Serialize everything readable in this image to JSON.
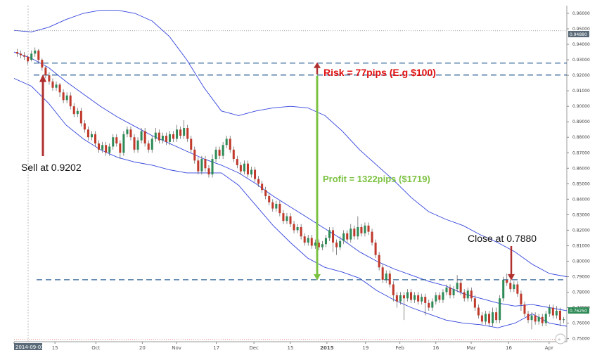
{
  "chart_data": {
    "type": "candlestick",
    "ylim": [
      0.748,
      0.965
    ],
    "y_ticks": [
      "0.96000",
      "0.95000",
      "0.94000",
      "0.93000",
      "0.92000",
      "0.91000",
      "0.90000",
      "0.89000",
      "0.88000",
      "0.87000",
      "0.86000",
      "0.85000",
      "0.84000",
      "0.83000",
      "0.82000",
      "0.81000",
      "0.80000",
      "0.79000",
      "0.78000",
      "0.77000",
      "0.76000",
      "0.75000"
    ],
    "y_tick_values": [
      0.96,
      0.95,
      0.94,
      0.93,
      0.92,
      0.91,
      0.9,
      0.89,
      0.88,
      0.87,
      0.86,
      0.85,
      0.84,
      0.83,
      0.82,
      0.81,
      0.8,
      0.79,
      0.78,
      0.77,
      0.76,
      0.75
    ],
    "x_ticks": [
      {
        "label": "2014-09-03",
        "pos": 0.0
      },
      {
        "label": "15",
        "pos": 0.074
      },
      {
        "label": "Oct",
        "pos": 0.148
      },
      {
        "label": "20",
        "pos": 0.232
      },
      {
        "label": "Nov",
        "pos": 0.294
      },
      {
        "label": "17",
        "pos": 0.366
      },
      {
        "label": "Dec",
        "pos": 0.434
      },
      {
        "label": "15",
        "pos": 0.5
      },
      {
        "label": "2015",
        "pos": 0.566
      },
      {
        "label": "19",
        "pos": 0.636
      },
      {
        "label": "Feb",
        "pos": 0.698
      },
      {
        "label": "16",
        "pos": 0.763
      },
      {
        "label": "Mar",
        "pos": 0.827
      },
      {
        "label": "16",
        "pos": 0.895
      },
      {
        "label": "Apr",
        "pos": 0.968
      }
    ],
    "price_labels": {
      "top": "0.94880",
      "current": "0.76250"
    },
    "horizontal_levels": {
      "top_reference": 0.9488,
      "stop_loss": 0.9279,
      "entry": 0.9202,
      "exit": 0.788,
      "bottom_reference": 0.7495
    },
    "bollinger": {
      "upper": [
        0.949,
        0.948,
        0.951,
        0.956,
        0.96,
        0.962,
        0.962,
        0.96,
        0.955,
        0.945,
        0.93,
        0.912,
        0.897,
        0.894,
        0.897,
        0.899,
        0.9,
        0.899,
        0.894,
        0.884,
        0.872,
        0.862,
        0.852,
        0.841,
        0.832,
        0.827,
        0.823,
        0.817,
        0.812,
        0.806,
        0.798,
        0.792,
        0.79
      ],
      "middle": [
        0.935,
        0.931,
        0.925,
        0.916,
        0.908,
        0.9,
        0.893,
        0.887,
        0.881,
        0.876,
        0.871,
        0.866,
        0.862,
        0.857,
        0.85,
        0.842,
        0.835,
        0.828,
        0.821,
        0.814,
        0.806,
        0.8,
        0.795,
        0.791,
        0.787,
        0.784,
        0.779,
        0.776,
        0.773,
        0.771,
        0.772,
        0.77,
        0.768
      ],
      "lower": [
        0.918,
        0.913,
        0.902,
        0.888,
        0.879,
        0.872,
        0.867,
        0.864,
        0.862,
        0.859,
        0.857,
        0.857,
        0.857,
        0.849,
        0.836,
        0.823,
        0.812,
        0.802,
        0.796,
        0.793,
        0.789,
        0.781,
        0.775,
        0.77,
        0.766,
        0.762,
        0.76,
        0.759,
        0.757,
        0.76,
        0.766,
        0.76,
        0.758
      ]
    },
    "candles": [
      [
        0.935,
        0.934,
        0.937,
        0.932
      ],
      [
        0.934,
        0.933,
        0.936,
        0.931
      ],
      [
        0.933,
        0.932,
        0.935,
        0.93
      ],
      [
        0.932,
        0.929,
        0.933,
        0.927
      ],
      [
        0.93,
        0.934,
        0.936,
        0.929
      ],
      [
        0.934,
        0.936,
        0.938,
        0.932
      ],
      [
        0.936,
        0.93,
        0.937,
        0.928
      ],
      [
        0.93,
        0.925,
        0.931,
        0.923
      ],
      [
        0.925,
        0.92,
        0.926,
        0.918
      ],
      [
        0.92,
        0.916,
        0.922,
        0.914
      ],
      [
        0.916,
        0.912,
        0.918,
        0.91
      ],
      [
        0.912,
        0.914,
        0.916,
        0.91
      ],
      [
        0.914,
        0.909,
        0.915,
        0.906
      ],
      [
        0.909,
        0.904,
        0.911,
        0.902
      ],
      [
        0.904,
        0.907,
        0.909,
        0.902
      ],
      [
        0.907,
        0.9,
        0.909,
        0.898
      ],
      [
        0.9,
        0.895,
        0.902,
        0.893
      ],
      [
        0.895,
        0.897,
        0.899,
        0.893
      ],
      [
        0.897,
        0.889,
        0.899,
        0.887
      ],
      [
        0.889,
        0.885,
        0.891,
        0.883
      ],
      [
        0.885,
        0.88,
        0.887,
        0.878
      ],
      [
        0.88,
        0.882,
        0.884,
        0.878
      ],
      [
        0.882,
        0.876,
        0.884,
        0.874
      ],
      [
        0.876,
        0.872,
        0.878,
        0.87
      ],
      [
        0.872,
        0.875,
        0.877,
        0.87
      ],
      [
        0.875,
        0.87,
        0.877,
        0.868
      ],
      [
        0.87,
        0.874,
        0.876,
        0.868
      ],
      [
        0.874,
        0.88,
        0.882,
        0.872
      ],
      [
        0.88,
        0.876,
        0.882,
        0.874
      ],
      [
        0.876,
        0.87,
        0.878,
        0.866
      ],
      [
        0.87,
        0.882,
        0.884,
        0.868
      ],
      [
        0.882,
        0.885,
        0.887,
        0.88
      ],
      [
        0.885,
        0.88,
        0.887,
        0.878
      ],
      [
        0.88,
        0.872,
        0.882,
        0.87
      ],
      [
        0.872,
        0.878,
        0.88,
        0.87
      ],
      [
        0.878,
        0.884,
        0.886,
        0.876
      ],
      [
        0.884,
        0.876,
        0.886,
        0.874
      ],
      [
        0.876,
        0.872,
        0.878,
        0.87
      ],
      [
        0.872,
        0.879,
        0.881,
        0.87
      ],
      [
        0.879,
        0.883,
        0.886,
        0.877
      ],
      [
        0.883,
        0.878,
        0.885,
        0.876
      ],
      [
        0.878,
        0.881,
        0.883,
        0.876
      ],
      [
        0.881,
        0.877,
        0.883,
        0.875
      ],
      [
        0.877,
        0.882,
        0.884,
        0.875
      ],
      [
        0.882,
        0.879,
        0.884,
        0.877
      ],
      [
        0.879,
        0.885,
        0.888,
        0.877
      ],
      [
        0.885,
        0.881,
        0.887,
        0.879
      ],
      [
        0.881,
        0.886,
        0.891,
        0.879
      ],
      [
        0.886,
        0.879,
        0.888,
        0.877
      ],
      [
        0.879,
        0.872,
        0.881,
        0.87
      ],
      [
        0.872,
        0.865,
        0.874,
        0.863
      ],
      [
        0.865,
        0.858,
        0.867,
        0.856
      ],
      [
        0.858,
        0.866,
        0.868,
        0.856
      ],
      [
        0.866,
        0.86,
        0.868,
        0.858
      ],
      [
        0.86,
        0.856,
        0.862,
        0.854
      ],
      [
        0.856,
        0.866,
        0.869,
        0.854
      ],
      [
        0.866,
        0.872,
        0.874,
        0.864
      ],
      [
        0.872,
        0.868,
        0.874,
        0.866
      ],
      [
        0.868,
        0.875,
        0.877,
        0.866
      ],
      [
        0.875,
        0.879,
        0.881,
        0.873
      ],
      [
        0.879,
        0.872,
        0.881,
        0.87
      ],
      [
        0.872,
        0.866,
        0.874,
        0.864
      ],
      [
        0.866,
        0.862,
        0.868,
        0.86
      ],
      [
        0.862,
        0.858,
        0.864,
        0.856
      ],
      [
        0.858,
        0.863,
        0.865,
        0.856
      ],
      [
        0.863,
        0.856,
        0.865,
        0.854
      ],
      [
        0.856,
        0.859,
        0.861,
        0.854
      ],
      [
        0.859,
        0.853,
        0.861,
        0.851
      ],
      [
        0.853,
        0.85,
        0.855,
        0.848
      ],
      [
        0.85,
        0.846,
        0.852,
        0.844
      ],
      [
        0.846,
        0.842,
        0.848,
        0.84
      ],
      [
        0.842,
        0.838,
        0.844,
        0.836
      ],
      [
        0.838,
        0.834,
        0.84,
        0.832
      ],
      [
        0.834,
        0.837,
        0.839,
        0.832
      ],
      [
        0.837,
        0.831,
        0.839,
        0.829
      ],
      [
        0.831,
        0.826,
        0.833,
        0.824
      ],
      [
        0.826,
        0.829,
        0.831,
        0.824
      ],
      [
        0.829,
        0.824,
        0.831,
        0.822
      ],
      [
        0.824,
        0.82,
        0.826,
        0.818
      ],
      [
        0.82,
        0.822,
        0.824,
        0.818
      ],
      [
        0.822,
        0.816,
        0.824,
        0.814
      ],
      [
        0.816,
        0.812,
        0.818,
        0.81
      ],
      [
        0.812,
        0.815,
        0.817,
        0.81
      ],
      [
        0.815,
        0.81,
        0.817,
        0.808
      ],
      [
        0.81,
        0.812,
        0.814,
        0.808
      ],
      [
        0.812,
        0.809,
        0.814,
        0.807
      ],
      [
        0.809,
        0.811,
        0.813,
        0.807
      ],
      [
        0.811,
        0.815,
        0.817,
        0.809
      ],
      [
        0.815,
        0.82,
        0.822,
        0.813
      ],
      [
        0.82,
        0.812,
        0.822,
        0.806
      ],
      [
        0.812,
        0.809,
        0.814,
        0.804
      ],
      [
        0.809,
        0.813,
        0.816,
        0.807
      ],
      [
        0.813,
        0.818,
        0.82,
        0.811
      ],
      [
        0.818,
        0.814,
        0.82,
        0.812
      ],
      [
        0.814,
        0.821,
        0.824,
        0.812
      ],
      [
        0.821,
        0.816,
        0.823,
        0.814
      ],
      [
        0.816,
        0.822,
        0.829,
        0.814
      ],
      [
        0.822,
        0.818,
        0.824,
        0.816
      ],
      [
        0.818,
        0.823,
        0.825,
        0.816
      ],
      [
        0.823,
        0.819,
        0.825,
        0.817
      ],
      [
        0.819,
        0.812,
        0.821,
        0.81
      ],
      [
        0.812,
        0.804,
        0.814,
        0.802
      ],
      [
        0.804,
        0.796,
        0.806,
        0.794
      ],
      [
        0.796,
        0.788,
        0.798,
        0.786
      ],
      [
        0.788,
        0.792,
        0.794,
        0.786
      ],
      [
        0.792,
        0.785,
        0.794,
        0.783
      ],
      [
        0.785,
        0.778,
        0.787,
        0.774
      ],
      [
        0.778,
        0.774,
        0.78,
        0.77
      ],
      [
        0.774,
        0.778,
        0.78,
        0.772
      ],
      [
        0.778,
        0.776,
        0.78,
        0.762
      ],
      [
        0.776,
        0.78,
        0.782,
        0.774
      ],
      [
        0.78,
        0.775,
        0.782,
        0.773
      ],
      [
        0.775,
        0.778,
        0.78,
        0.773
      ],
      [
        0.778,
        0.774,
        0.78,
        0.772
      ],
      [
        0.774,
        0.777,
        0.779,
        0.772
      ],
      [
        0.777,
        0.773,
        0.779,
        0.765
      ],
      [
        0.773,
        0.77,
        0.775,
        0.768
      ],
      [
        0.77,
        0.774,
        0.776,
        0.768
      ],
      [
        0.774,
        0.778,
        0.78,
        0.772
      ],
      [
        0.778,
        0.775,
        0.78,
        0.773
      ],
      [
        0.775,
        0.78,
        0.782,
        0.773
      ],
      [
        0.78,
        0.783,
        0.785,
        0.778
      ],
      [
        0.783,
        0.778,
        0.785,
        0.776
      ],
      [
        0.778,
        0.782,
        0.784,
        0.776
      ],
      [
        0.782,
        0.786,
        0.791,
        0.78
      ],
      [
        0.786,
        0.78,
        0.788,
        0.778
      ],
      [
        0.78,
        0.776,
        0.782,
        0.774
      ],
      [
        0.776,
        0.781,
        0.783,
        0.774
      ],
      [
        0.781,
        0.776,
        0.783,
        0.774
      ],
      [
        0.776,
        0.77,
        0.778,
        0.768
      ],
      [
        0.77,
        0.765,
        0.772,
        0.763
      ],
      [
        0.765,
        0.761,
        0.767,
        0.759
      ],
      [
        0.761,
        0.766,
        0.768,
        0.759
      ],
      [
        0.766,
        0.76,
        0.768,
        0.758
      ],
      [
        0.76,
        0.767,
        0.77,
        0.758
      ],
      [
        0.767,
        0.762,
        0.77,
        0.76
      ],
      [
        0.762,
        0.776,
        0.778,
        0.76
      ],
      [
        0.776,
        0.788,
        0.79,
        0.774
      ],
      [
        0.788,
        0.786,
        0.792,
        0.784
      ],
      [
        0.786,
        0.782,
        0.788,
        0.78
      ],
      [
        0.782,
        0.785,
        0.787,
        0.78
      ],
      [
        0.785,
        0.779,
        0.787,
        0.777
      ],
      [
        0.779,
        0.772,
        0.781,
        0.768
      ],
      [
        0.772,
        0.766,
        0.774,
        0.764
      ],
      [
        0.766,
        0.762,
        0.768,
        0.76
      ],
      [
        0.762,
        0.765,
        0.767,
        0.756
      ],
      [
        0.765,
        0.761,
        0.767,
        0.759
      ],
      [
        0.761,
        0.764,
        0.766,
        0.759
      ],
      [
        0.764,
        0.76,
        0.766,
        0.758
      ],
      [
        0.76,
        0.766,
        0.768,
        0.758
      ],
      [
        0.766,
        0.77,
        0.772,
        0.764
      ],
      [
        0.77,
        0.765,
        0.772,
        0.763
      ],
      [
        0.765,
        0.768,
        0.771,
        0.763
      ],
      [
        0.768,
        0.762,
        0.77,
        0.758
      ],
      [
        0.762,
        0.7625,
        0.764,
        0.76
      ]
    ],
    "annotations": {
      "sell": "Sell at 0.9202",
      "risk": "Risk = 77pips (E.g $100)",
      "profit": "Profit = 1322pips ($1719)",
      "close": "Close at 0.7880"
    },
    "colors": {
      "up": "#2e8b57",
      "down": "#c0392b",
      "band": "#3344dd",
      "dash": "#336699",
      "risk": "#e01010",
      "profit": "#7cc242",
      "arrow_red": "#b03030",
      "price_box": "#5a6a78"
    },
    "grid": false
  }
}
